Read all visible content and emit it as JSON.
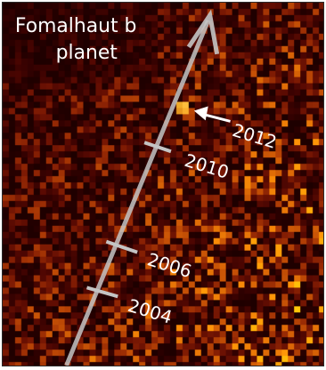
{
  "title": {
    "line1": "Fomalhaut b",
    "line2": "planet"
  },
  "markers": [
    {
      "year": "2012",
      "pointed_by_arrow": true
    },
    {
      "year": "2010",
      "pointed_by_arrow": false
    },
    {
      "year": "2006",
      "pointed_by_arrow": false
    },
    {
      "year": "2004",
      "pointed_by_arrow": false
    }
  ],
  "colors": {
    "background_dark": "#0b0000",
    "noise_hot": "#ff9a10",
    "track": "#b8b8b8",
    "text": "#ffffff"
  },
  "icons": {
    "track_arrow": "arrow-up-icon",
    "pointer": "arrow-left-icon"
  }
}
